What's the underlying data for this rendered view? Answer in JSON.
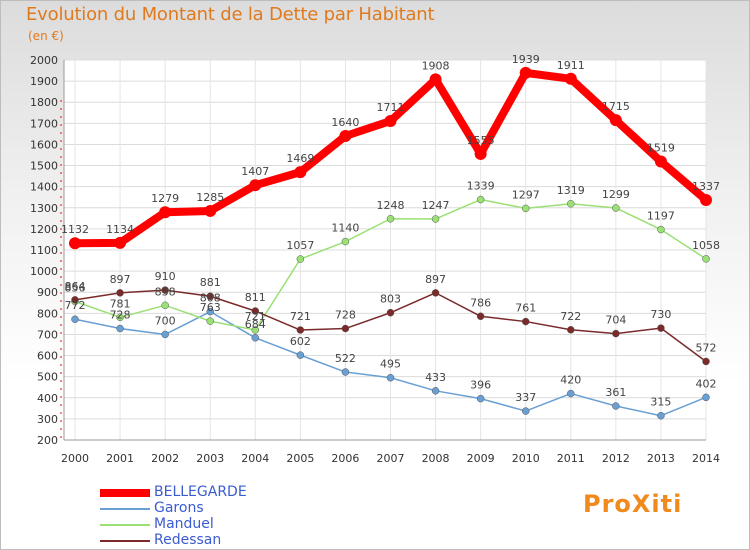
{
  "title": "Evolution du Montant de la Dette par Habitant",
  "subtitle": "(en €)",
  "logo_text": "ProXiti",
  "chart_data": {
    "type": "line",
    "title": "Evolution du Montant de la Dette par Habitant",
    "subtitle": "(en €)",
    "xlabel": "",
    "ylabel": "",
    "x": [
      "2000",
      "2001",
      "2002",
      "2003",
      "2004",
      "2005",
      "2006",
      "2007",
      "2008",
      "2009",
      "2010",
      "2011",
      "2012",
      "2013",
      "2014"
    ],
    "ylim": [
      200,
      2000
    ],
    "yticks": [
      200,
      300,
      400,
      500,
      600,
      700,
      800,
      900,
      1000,
      1100,
      1200,
      1300,
      1400,
      1500,
      1600,
      1700,
      1800,
      1900,
      2000
    ],
    "grid": true,
    "legend_position": "bottom-left",
    "series": [
      {
        "name": "BELLEGARDE",
        "color": "#ff0000",
        "values": [
          1132,
          1134,
          1279,
          1285,
          1407,
          1469,
          1640,
          1711,
          1908,
          1555,
          1939,
          1911,
          1715,
          1519,
          1337
        ]
      },
      {
        "name": "Garons",
        "color": "#6a9fd4",
        "values": [
          772,
          728,
          700,
          808,
          684,
          602,
          522,
          495,
          433,
          396,
          337,
          420,
          361,
          315,
          402
        ]
      },
      {
        "name": "Manduel",
        "color": "#9be075",
        "values": [
          856,
          781,
          838,
          763,
          721,
          1057,
          1140,
          1248,
          1247,
          1339,
          1297,
          1319,
          1299,
          1197,
          1058
        ]
      },
      {
        "name": "Redessan",
        "color": "#7b2a2a",
        "values": [
          864,
          897,
          910,
          881,
          811,
          721,
          728,
          803,
          897,
          786,
          761,
          722,
          704,
          730,
          572
        ]
      }
    ]
  }
}
